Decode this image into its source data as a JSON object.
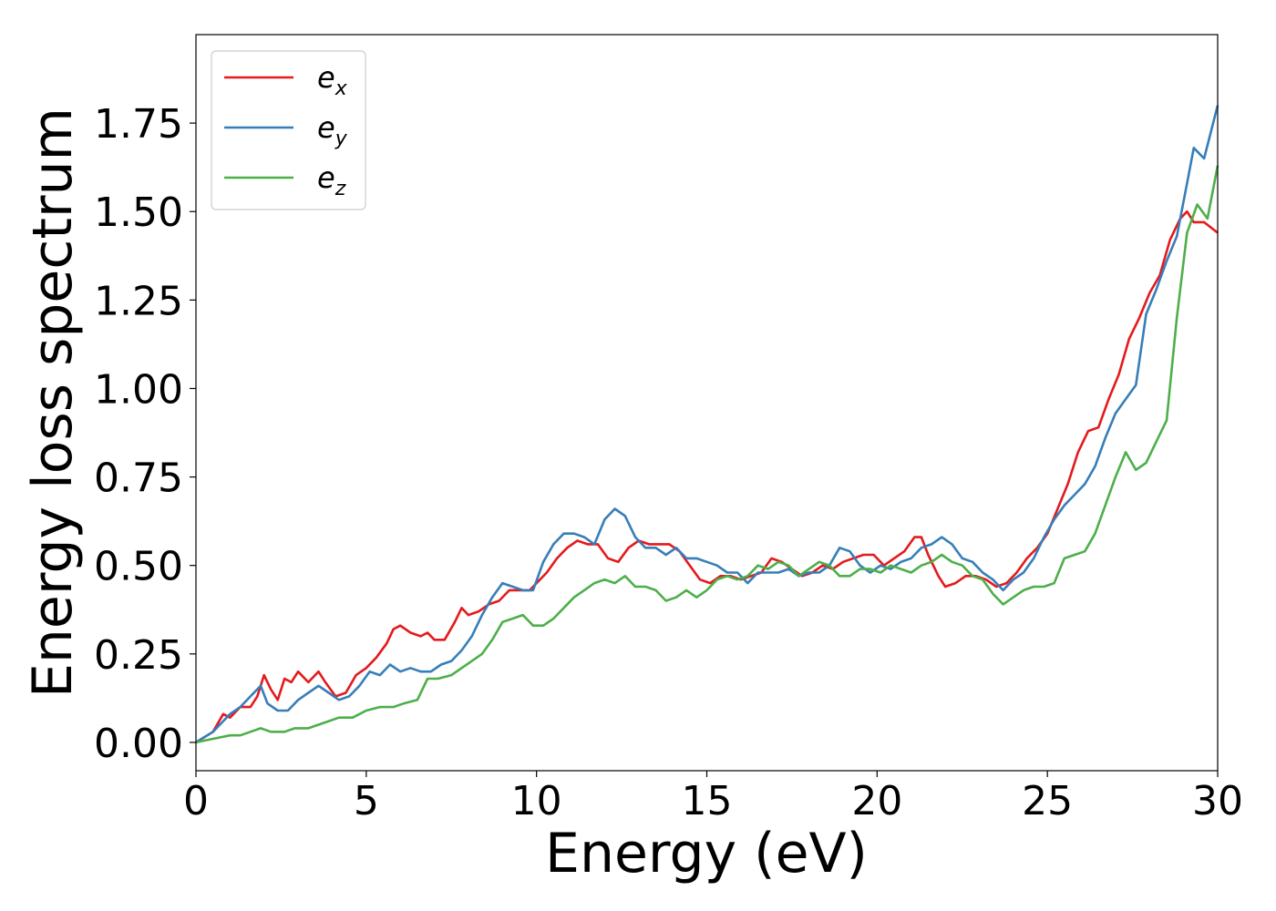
{
  "chart_data": {
    "type": "line",
    "xlabel": "Energy (eV)",
    "ylabel": "Energy loss spectrum",
    "xlim": [
      0,
      30
    ],
    "ylim": [
      -0.08,
      2.0
    ],
    "x_ticks": [
      "0",
      "5",
      "10",
      "15",
      "20",
      "25",
      "30"
    ],
    "x_tick_values": [
      0,
      5,
      10,
      15,
      20,
      25,
      30
    ],
    "y_ticks": [
      "0.00",
      "0.25",
      "0.50",
      "0.75",
      "1.00",
      "1.25",
      "1.50",
      "1.75"
    ],
    "y_tick_values": [
      0,
      0.25,
      0.5,
      0.75,
      1.0,
      1.25,
      1.5,
      1.75
    ],
    "grid": false,
    "legend_position": "top-left",
    "series": [
      {
        "name": "e_x",
        "base": "e",
        "sub": "x",
        "color": "#e41a1c",
        "points": [
          [
            0,
            0
          ],
          [
            0.5,
            0.03
          ],
          [
            0.8,
            0.08
          ],
          [
            1.0,
            0.07
          ],
          [
            1.3,
            0.1
          ],
          [
            1.6,
            0.1
          ],
          [
            1.8,
            0.13
          ],
          [
            2.0,
            0.19
          ],
          [
            2.2,
            0.15
          ],
          [
            2.4,
            0.12
          ],
          [
            2.6,
            0.18
          ],
          [
            2.8,
            0.17
          ],
          [
            3.0,
            0.2
          ],
          [
            3.3,
            0.17
          ],
          [
            3.6,
            0.2
          ],
          [
            3.8,
            0.17
          ],
          [
            4.1,
            0.13
          ],
          [
            4.4,
            0.14
          ],
          [
            4.7,
            0.19
          ],
          [
            5.0,
            0.21
          ],
          [
            5.3,
            0.24
          ],
          [
            5.6,
            0.28
          ],
          [
            5.8,
            0.32
          ],
          [
            6.0,
            0.33
          ],
          [
            6.3,
            0.31
          ],
          [
            6.6,
            0.3
          ],
          [
            6.8,
            0.31
          ],
          [
            7.0,
            0.29
          ],
          [
            7.3,
            0.29
          ],
          [
            7.6,
            0.34
          ],
          [
            7.8,
            0.38
          ],
          [
            8.0,
            0.36
          ],
          [
            8.3,
            0.37
          ],
          [
            8.6,
            0.39
          ],
          [
            8.9,
            0.4
          ],
          [
            9.2,
            0.43
          ],
          [
            9.5,
            0.43
          ],
          [
            9.8,
            0.43
          ],
          [
            10.0,
            0.45
          ],
          [
            10.3,
            0.48
          ],
          [
            10.6,
            0.52
          ],
          [
            10.9,
            0.55
          ],
          [
            11.2,
            0.57
          ],
          [
            11.5,
            0.56
          ],
          [
            11.8,
            0.56
          ],
          [
            12.1,
            0.52
          ],
          [
            12.4,
            0.51
          ],
          [
            12.7,
            0.55
          ],
          [
            13.0,
            0.57
          ],
          [
            13.3,
            0.56
          ],
          [
            13.6,
            0.56
          ],
          [
            13.9,
            0.56
          ],
          [
            14.2,
            0.54
          ],
          [
            14.5,
            0.5
          ],
          [
            14.8,
            0.46
          ],
          [
            15.1,
            0.45
          ],
          [
            15.4,
            0.47
          ],
          [
            15.7,
            0.47
          ],
          [
            16.0,
            0.46
          ],
          [
            16.3,
            0.47
          ],
          [
            16.6,
            0.48
          ],
          [
            16.9,
            0.52
          ],
          [
            17.2,
            0.51
          ],
          [
            17.5,
            0.49
          ],
          [
            17.8,
            0.47
          ],
          [
            18.1,
            0.48
          ],
          [
            18.4,
            0.5
          ],
          [
            18.7,
            0.49
          ],
          [
            19.0,
            0.51
          ],
          [
            19.3,
            0.52
          ],
          [
            19.6,
            0.53
          ],
          [
            19.9,
            0.53
          ],
          [
            20.2,
            0.5
          ],
          [
            20.5,
            0.52
          ],
          [
            20.8,
            0.54
          ],
          [
            21.1,
            0.58
          ],
          [
            21.3,
            0.58
          ],
          [
            21.5,
            0.53
          ],
          [
            21.8,
            0.47
          ],
          [
            22.0,
            0.44
          ],
          [
            22.3,
            0.45
          ],
          [
            22.6,
            0.47
          ],
          [
            22.9,
            0.47
          ],
          [
            23.2,
            0.46
          ],
          [
            23.5,
            0.44
          ],
          [
            23.8,
            0.45
          ],
          [
            24.1,
            0.48
          ],
          [
            24.4,
            0.52
          ],
          [
            24.7,
            0.55
          ],
          [
            25.0,
            0.59
          ],
          [
            25.3,
            0.66
          ],
          [
            25.6,
            0.73
          ],
          [
            25.9,
            0.82
          ],
          [
            26.2,
            0.88
          ],
          [
            26.5,
            0.89
          ],
          [
            26.8,
            0.97
          ],
          [
            27.1,
            1.04
          ],
          [
            27.4,
            1.14
          ],
          [
            27.7,
            1.2
          ],
          [
            28.0,
            1.27
          ],
          [
            28.3,
            1.32
          ],
          [
            28.6,
            1.42
          ],
          [
            28.9,
            1.48
          ],
          [
            29.1,
            1.5
          ],
          [
            29.3,
            1.47
          ],
          [
            29.6,
            1.47
          ],
          [
            30.0,
            1.44
          ]
        ]
      },
      {
        "name": "e_y",
        "base": "e",
        "sub": "y",
        "color": "#377eb8",
        "points": [
          [
            0,
            0
          ],
          [
            0.5,
            0.03
          ],
          [
            0.8,
            0.06
          ],
          [
            1.0,
            0.08
          ],
          [
            1.3,
            0.1
          ],
          [
            1.6,
            0.13
          ],
          [
            1.9,
            0.16
          ],
          [
            2.1,
            0.11
          ],
          [
            2.4,
            0.09
          ],
          [
            2.7,
            0.09
          ],
          [
            3.0,
            0.12
          ],
          [
            3.3,
            0.14
          ],
          [
            3.6,
            0.16
          ],
          [
            3.9,
            0.14
          ],
          [
            4.2,
            0.12
          ],
          [
            4.5,
            0.13
          ],
          [
            4.8,
            0.16
          ],
          [
            5.1,
            0.2
          ],
          [
            5.4,
            0.19
          ],
          [
            5.7,
            0.22
          ],
          [
            6.0,
            0.2
          ],
          [
            6.3,
            0.21
          ],
          [
            6.6,
            0.2
          ],
          [
            6.9,
            0.2
          ],
          [
            7.2,
            0.22
          ],
          [
            7.5,
            0.23
          ],
          [
            7.8,
            0.26
          ],
          [
            8.1,
            0.3
          ],
          [
            8.4,
            0.36
          ],
          [
            8.7,
            0.41
          ],
          [
            9.0,
            0.45
          ],
          [
            9.3,
            0.44
          ],
          [
            9.6,
            0.43
          ],
          [
            9.9,
            0.43
          ],
          [
            10.2,
            0.51
          ],
          [
            10.5,
            0.56
          ],
          [
            10.8,
            0.59
          ],
          [
            11.1,
            0.59
          ],
          [
            11.4,
            0.58
          ],
          [
            11.7,
            0.56
          ],
          [
            12.0,
            0.63
          ],
          [
            12.3,
            0.66
          ],
          [
            12.6,
            0.64
          ],
          [
            12.9,
            0.58
          ],
          [
            13.2,
            0.55
          ],
          [
            13.5,
            0.55
          ],
          [
            13.8,
            0.53
          ],
          [
            14.1,
            0.55
          ],
          [
            14.4,
            0.52
          ],
          [
            14.7,
            0.52
          ],
          [
            15.0,
            0.51
          ],
          [
            15.3,
            0.5
          ],
          [
            15.6,
            0.48
          ],
          [
            15.9,
            0.48
          ],
          [
            16.2,
            0.45
          ],
          [
            16.5,
            0.48
          ],
          [
            16.8,
            0.48
          ],
          [
            17.1,
            0.48
          ],
          [
            17.4,
            0.49
          ],
          [
            17.7,
            0.47
          ],
          [
            18.0,
            0.48
          ],
          [
            18.3,
            0.48
          ],
          [
            18.6,
            0.5
          ],
          [
            18.9,
            0.55
          ],
          [
            19.2,
            0.54
          ],
          [
            19.5,
            0.5
          ],
          [
            19.8,
            0.48
          ],
          [
            20.1,
            0.5
          ],
          [
            20.4,
            0.49
          ],
          [
            20.7,
            0.51
          ],
          [
            21.0,
            0.52
          ],
          [
            21.3,
            0.55
          ],
          [
            21.6,
            0.56
          ],
          [
            21.9,
            0.58
          ],
          [
            22.2,
            0.56
          ],
          [
            22.5,
            0.52
          ],
          [
            22.8,
            0.51
          ],
          [
            23.1,
            0.48
          ],
          [
            23.4,
            0.46
          ],
          [
            23.7,
            0.43
          ],
          [
            24.0,
            0.46
          ],
          [
            24.3,
            0.48
          ],
          [
            24.6,
            0.52
          ],
          [
            24.9,
            0.58
          ],
          [
            25.2,
            0.63
          ],
          [
            25.5,
            0.67
          ],
          [
            25.8,
            0.7
          ],
          [
            26.1,
            0.73
          ],
          [
            26.4,
            0.78
          ],
          [
            26.7,
            0.86
          ],
          [
            27.0,
            0.93
          ],
          [
            27.3,
            0.97
          ],
          [
            27.6,
            1.01
          ],
          [
            27.9,
            1.21
          ],
          [
            28.2,
            1.28
          ],
          [
            28.5,
            1.36
          ],
          [
            28.8,
            1.43
          ],
          [
            29.1,
            1.58
          ],
          [
            29.3,
            1.68
          ],
          [
            29.6,
            1.65
          ],
          [
            30.0,
            1.8
          ]
        ]
      },
      {
        "name": "e_z",
        "base": "e",
        "sub": "z",
        "color": "#4daf4a",
        "points": [
          [
            0,
            0
          ],
          [
            0.5,
            0.01
          ],
          [
            1.0,
            0.02
          ],
          [
            1.3,
            0.02
          ],
          [
            1.6,
            0.03
          ],
          [
            1.9,
            0.04
          ],
          [
            2.2,
            0.03
          ],
          [
            2.6,
            0.03
          ],
          [
            2.9,
            0.04
          ],
          [
            3.3,
            0.04
          ],
          [
            3.6,
            0.05
          ],
          [
            3.9,
            0.06
          ],
          [
            4.2,
            0.07
          ],
          [
            4.6,
            0.07
          ],
          [
            5.0,
            0.09
          ],
          [
            5.4,
            0.1
          ],
          [
            5.8,
            0.1
          ],
          [
            6.1,
            0.11
          ],
          [
            6.5,
            0.12
          ],
          [
            6.8,
            0.18
          ],
          [
            7.1,
            0.18
          ],
          [
            7.5,
            0.19
          ],
          [
            7.8,
            0.21
          ],
          [
            8.1,
            0.23
          ],
          [
            8.4,
            0.25
          ],
          [
            8.7,
            0.29
          ],
          [
            9.0,
            0.34
          ],
          [
            9.3,
            0.35
          ],
          [
            9.6,
            0.36
          ],
          [
            9.9,
            0.33
          ],
          [
            10.2,
            0.33
          ],
          [
            10.5,
            0.35
          ],
          [
            10.8,
            0.38
          ],
          [
            11.1,
            0.41
          ],
          [
            11.4,
            0.43
          ],
          [
            11.7,
            0.45
          ],
          [
            12.0,
            0.46
          ],
          [
            12.3,
            0.45
          ],
          [
            12.6,
            0.47
          ],
          [
            12.9,
            0.44
          ],
          [
            13.2,
            0.44
          ],
          [
            13.5,
            0.43
          ],
          [
            13.8,
            0.4
          ],
          [
            14.1,
            0.41
          ],
          [
            14.4,
            0.43
          ],
          [
            14.7,
            0.41
          ],
          [
            15.0,
            0.43
          ],
          [
            15.3,
            0.46
          ],
          [
            15.6,
            0.47
          ],
          [
            15.9,
            0.46
          ],
          [
            16.2,
            0.47
          ],
          [
            16.5,
            0.5
          ],
          [
            16.8,
            0.49
          ],
          [
            17.1,
            0.51
          ],
          [
            17.4,
            0.5
          ],
          [
            17.7,
            0.47
          ],
          [
            18.0,
            0.49
          ],
          [
            18.3,
            0.51
          ],
          [
            18.6,
            0.5
          ],
          [
            18.9,
            0.47
          ],
          [
            19.2,
            0.47
          ],
          [
            19.5,
            0.49
          ],
          [
            19.8,
            0.49
          ],
          [
            20.1,
            0.48
          ],
          [
            20.4,
            0.5
          ],
          [
            20.7,
            0.49
          ],
          [
            21.0,
            0.48
          ],
          [
            21.3,
            0.5
          ],
          [
            21.6,
            0.51
          ],
          [
            21.9,
            0.53
          ],
          [
            22.2,
            0.51
          ],
          [
            22.5,
            0.5
          ],
          [
            22.8,
            0.47
          ],
          [
            23.1,
            0.46
          ],
          [
            23.4,
            0.42
          ],
          [
            23.7,
            0.39
          ],
          [
            24.0,
            0.41
          ],
          [
            24.3,
            0.43
          ],
          [
            24.6,
            0.44
          ],
          [
            24.9,
            0.44
          ],
          [
            25.2,
            0.45
          ],
          [
            25.5,
            0.52
          ],
          [
            25.8,
            0.53
          ],
          [
            26.1,
            0.54
          ],
          [
            26.4,
            0.59
          ],
          [
            26.7,
            0.67
          ],
          [
            27.0,
            0.75
          ],
          [
            27.3,
            0.82
          ],
          [
            27.6,
            0.77
          ],
          [
            27.9,
            0.79
          ],
          [
            28.2,
            0.85
          ],
          [
            28.5,
            0.91
          ],
          [
            28.8,
            1.2
          ],
          [
            29.1,
            1.44
          ],
          [
            29.4,
            1.52
          ],
          [
            29.7,
            1.48
          ],
          [
            30.0,
            1.63
          ]
        ]
      }
    ]
  }
}
